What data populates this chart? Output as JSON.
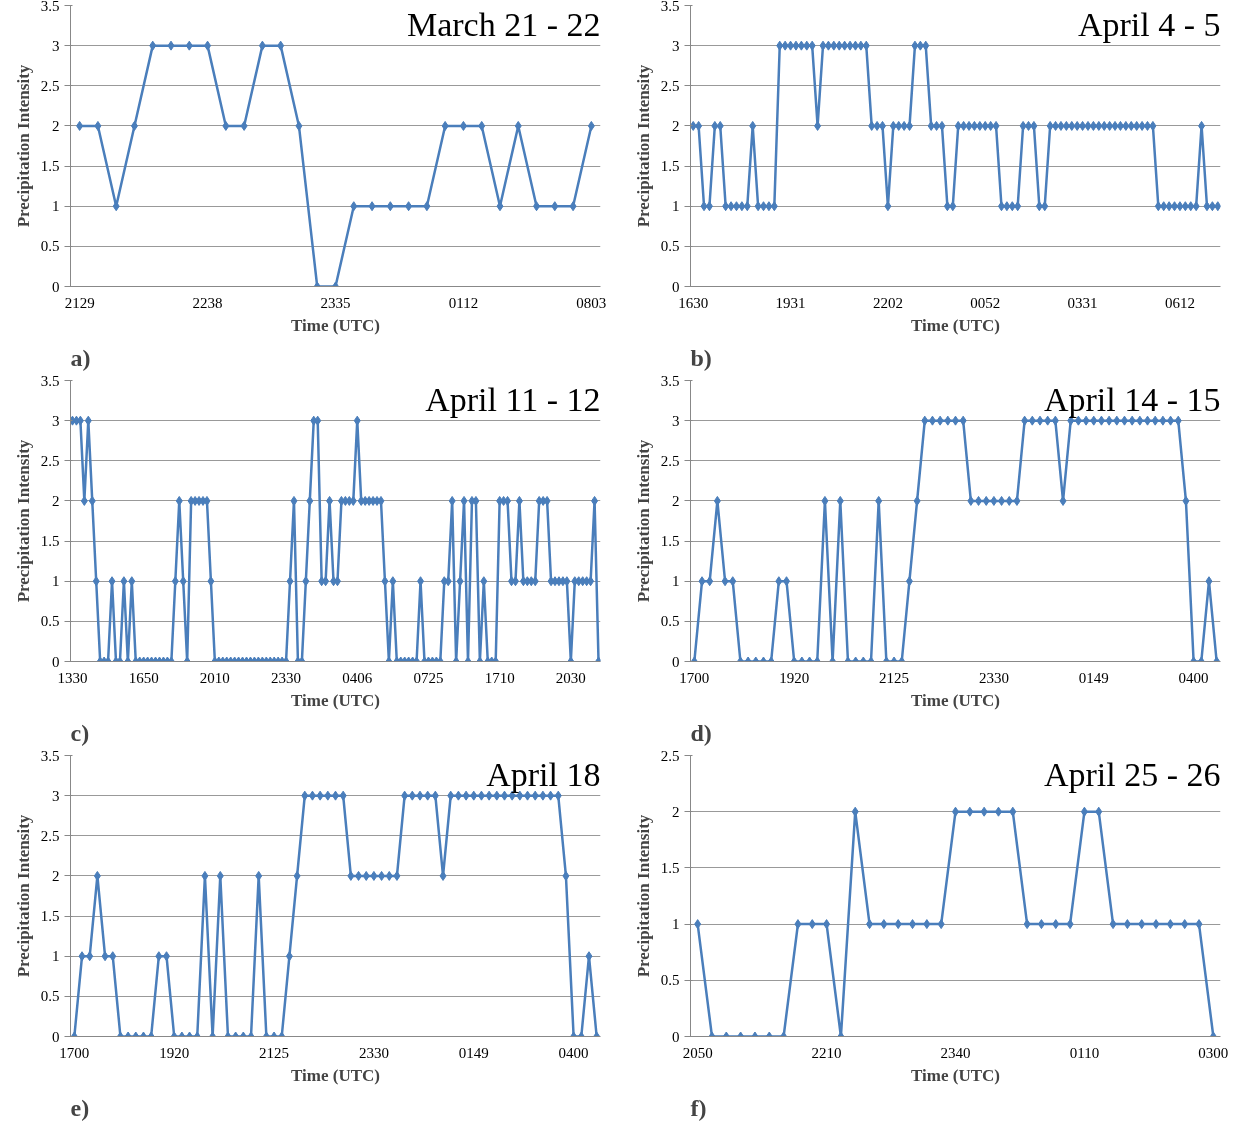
{
  "chart_data": [
    {
      "type": "line",
      "title": "March 21 - 22",
      "xlabel": "Time (UTC)",
      "ylabel": "Precipitation Intensity",
      "annotations": [
        "a)"
      ],
      "color": "#4a7ebb",
      "marker": "diamond",
      "grid": "y",
      "ylim": [
        0,
        3.5
      ],
      "yticks": [
        0,
        0.5,
        1,
        1.5,
        2,
        2.5,
        3,
        3.5
      ],
      "categories": [
        "2129",
        null,
        null,
        null,
        null,
        null,
        null,
        "2238",
        null,
        null,
        null,
        null,
        null,
        null,
        "2335",
        null,
        null,
        null,
        null,
        null,
        null,
        "0112",
        null,
        null,
        null,
        null,
        null,
        null,
        "0803"
      ],
      "values": [
        2,
        2,
        1,
        2,
        3,
        3,
        3,
        3,
        2,
        2,
        3,
        3,
        2,
        0,
        0,
        1,
        1,
        1,
        1,
        1,
        2,
        2,
        2,
        1,
        2,
        1,
        1,
        1,
        2
      ]
    },
    {
      "type": "line",
      "title": "April 4 - 5",
      "xlabel": "Time (UTC)",
      "ylabel": "Precipitation Intensity",
      "annotations": [
        "b)"
      ],
      "color": "#4a7ebb",
      "marker": "diamond",
      "grid": "y",
      "ylim": [
        0,
        3.5
      ],
      "yticks": [
        0,
        0.5,
        1,
        1.5,
        2,
        2.5,
        3,
        3.5
      ],
      "categories": [
        "1630",
        null,
        null,
        null,
        null,
        null,
        null,
        null,
        null,
        null,
        null,
        null,
        null,
        null,
        null,
        null,
        null,
        null,
        "1931",
        null,
        null,
        null,
        null,
        null,
        null,
        null,
        null,
        null,
        null,
        null,
        null,
        null,
        null,
        null,
        null,
        null,
        "2202",
        null,
        null,
        null,
        null,
        null,
        null,
        null,
        null,
        null,
        null,
        null,
        null,
        null,
        null,
        null,
        null,
        null,
        "0052",
        null,
        null,
        null,
        null,
        null,
        null,
        null,
        null,
        null,
        null,
        null,
        null,
        null,
        null,
        null,
        null,
        null,
        "0331",
        null,
        null,
        null,
        null,
        null,
        null,
        null,
        null,
        null,
        null,
        null,
        null,
        null,
        null,
        null,
        null,
        null,
        "0612",
        null,
        null,
        null,
        null,
        null,
        null,
        null
      ],
      "values": [
        2,
        2,
        1,
        1,
        2,
        2,
        1,
        1,
        1,
        1,
        1,
        2,
        1,
        1,
        1,
        1,
        3,
        3,
        3,
        3,
        3,
        3,
        3,
        2,
        3,
        3,
        3,
        3,
        3,
        3,
        3,
        3,
        3,
        2,
        2,
        2,
        1,
        2,
        2,
        2,
        2,
        3,
        3,
        3,
        2,
        2,
        2,
        1,
        1,
        2,
        2,
        2,
        2,
        2,
        2,
        2,
        2,
        1,
        1,
        1,
        1,
        2,
        2,
        2,
        1,
        1,
        2,
        2,
        2,
        2,
        2,
        2,
        2,
        2,
        2,
        2,
        2,
        2,
        2,
        2,
        2,
        2,
        2,
        2,
        2,
        2,
        1,
        1,
        1,
        1,
        1,
        1,
        1,
        1,
        2,
        1,
        1,
        1
      ]
    },
    {
      "type": "line",
      "title": "April 11 - 12",
      "xlabel": "Time (UTC)",
      "ylabel": "Precipitation Intensity",
      "annotations": [
        "c)"
      ],
      "color": "#4a7ebb",
      "marker": "diamond",
      "grid": "y",
      "ylim": [
        0,
        3.5
      ],
      "yticks": [
        0,
        0.5,
        1,
        1.5,
        2,
        2.5,
        3,
        3.5
      ],
      "categories": [
        "1330",
        null,
        null,
        null,
        null,
        null,
        null,
        null,
        null,
        null,
        null,
        null,
        null,
        null,
        null,
        null,
        null,
        null,
        "1650",
        null,
        null,
        null,
        null,
        null,
        null,
        null,
        null,
        null,
        null,
        null,
        null,
        null,
        null,
        null,
        null,
        null,
        "2010",
        null,
        null,
        null,
        null,
        null,
        null,
        null,
        null,
        null,
        null,
        null,
        null,
        null,
        null,
        null,
        null,
        null,
        "2330",
        null,
        null,
        null,
        null,
        null,
        null,
        null,
        null,
        null,
        null,
        null,
        null,
        null,
        null,
        null,
        null,
        null,
        "0406",
        null,
        null,
        null,
        null,
        null,
        null,
        null,
        null,
        null,
        null,
        null,
        null,
        null,
        null,
        null,
        null,
        null,
        "0725",
        null,
        null,
        null,
        null,
        null,
        null,
        null,
        null,
        null,
        null,
        null,
        null,
        null,
        null,
        null,
        null,
        null,
        "1710",
        null,
        null,
        null,
        null,
        null,
        null,
        null,
        null,
        null,
        null,
        null,
        null,
        null,
        null,
        null,
        null,
        null,
        "2030",
        null,
        null,
        null,
        null,
        null,
        null,
        null
      ],
      "values": [
        3,
        3,
        3,
        2,
        3,
        2,
        1,
        0,
        0,
        0,
        1,
        0,
        0,
        1,
        0,
        1,
        0,
        0,
        0,
        0,
        0,
        0,
        0,
        0,
        0,
        0,
        1,
        2,
        1,
        0,
        2,
        2,
        2,
        2,
        2,
        1,
        0,
        0,
        0,
        0,
        0,
        0,
        0,
        0,
        0,
        0,
        0,
        0,
        0,
        0,
        0,
        0,
        0,
        0,
        0,
        1,
        2,
        0,
        0,
        1,
        2,
        3,
        3,
        1,
        1,
        2,
        1,
        1,
        2,
        2,
        2,
        2,
        3,
        2,
        2,
        2,
        2,
        2,
        2,
        1,
        0,
        1,
        0,
        0,
        0,
        0,
        0,
        0,
        1,
        0,
        0,
        0,
        0,
        0,
        1,
        1,
        2,
        0,
        1,
        2,
        0,
        2,
        2,
        0,
        1,
        0,
        0,
        0,
        2,
        2,
        2,
        1,
        1,
        2,
        1,
        1,
        1,
        1,
        2,
        2,
        2,
        1,
        1,
        1,
        1,
        1,
        0,
        1,
        1,
        1,
        1,
        1,
        2,
        0
      ]
    },
    {
      "type": "line",
      "title": "April 14 - 15",
      "xlabel": "Time (UTC)",
      "ylabel": "Precipitation Intensity",
      "annotations": [
        "d)"
      ],
      "color": "#4a7ebb",
      "marker": "diamond",
      "grid": "y",
      "ylim": [
        0,
        3.5
      ],
      "yticks": [
        0,
        0.5,
        1,
        1.5,
        2,
        2.5,
        3,
        3.5
      ],
      "categories": [
        "1700",
        null,
        null,
        null,
        null,
        null,
        null,
        null,
        null,
        null,
        null,
        null,
        null,
        "1920",
        null,
        null,
        null,
        null,
        null,
        null,
        null,
        null,
        null,
        null,
        null,
        null,
        "2125",
        null,
        null,
        null,
        null,
        null,
        null,
        null,
        null,
        null,
        null,
        null,
        null,
        "2330",
        null,
        null,
        null,
        null,
        null,
        null,
        null,
        null,
        null,
        null,
        null,
        null,
        "0149",
        null,
        null,
        null,
        null,
        null,
        null,
        null,
        null,
        null,
        null,
        null,
        null,
        "0400",
        null,
        null,
        null
      ],
      "values": [
        0,
        1,
        1,
        2,
        1,
        1,
        0,
        0,
        0,
        0,
        0,
        1,
        1,
        0,
        0,
        0,
        0,
        2,
        0,
        2,
        0,
        0,
        0,
        0,
        2,
        0,
        0,
        0,
        1,
        2,
        3,
        3,
        3,
        3,
        3,
        3,
        2,
        2,
        2,
        2,
        2,
        2,
        2,
        3,
        3,
        3,
        3,
        3,
        2,
        3,
        3,
        3,
        3,
        3,
        3,
        3,
        3,
        3,
        3,
        3,
        3,
        3,
        3,
        3,
        2,
        0,
        0,
        1,
        0
      ]
    },
    {
      "type": "line",
      "title": "April 18",
      "xlabel": "Time (UTC)",
      "ylabel": "Precipitation Intensity",
      "annotations": [
        "e)"
      ],
      "color": "#4a7ebb",
      "marker": "diamond",
      "grid": "y",
      "ylim": [
        0,
        3.5
      ],
      "yticks": [
        0,
        0.5,
        1,
        1.5,
        2,
        2.5,
        3,
        3.5
      ],
      "categories": [
        "1700",
        null,
        null,
        null,
        null,
        null,
        null,
        null,
        null,
        null,
        null,
        null,
        null,
        "1920",
        null,
        null,
        null,
        null,
        null,
        null,
        null,
        null,
        null,
        null,
        null,
        null,
        "2125",
        null,
        null,
        null,
        null,
        null,
        null,
        null,
        null,
        null,
        null,
        null,
        null,
        "2330",
        null,
        null,
        null,
        null,
        null,
        null,
        null,
        null,
        null,
        null,
        null,
        null,
        "0149",
        null,
        null,
        null,
        null,
        null,
        null,
        null,
        null,
        null,
        null,
        null,
        null,
        "0400",
        null,
        null,
        null
      ],
      "values": [
        0,
        1,
        1,
        2,
        1,
        1,
        0,
        0,
        0,
        0,
        0,
        1,
        1,
        0,
        0,
        0,
        0,
        2,
        0,
        2,
        0,
        0,
        0,
        0,
        2,
        0,
        0,
        0,
        1,
        2,
        3,
        3,
        3,
        3,
        3,
        3,
        2,
        2,
        2,
        2,
        2,
        2,
        2,
        3,
        3,
        3,
        3,
        3,
        2,
        3,
        3,
        3,
        3,
        3,
        3,
        3,
        3,
        3,
        3,
        3,
        3,
        3,
        3,
        3,
        2,
        0,
        0,
        1,
        0
      ]
    },
    {
      "type": "line",
      "title": "April 25 - 26",
      "xlabel": "Time (UTC)",
      "ylabel": "Precipitation Intensity",
      "annotations": [
        "f)"
      ],
      "color": "#4a7ebb",
      "marker": "diamond",
      "grid": "y",
      "ylim": [
        0,
        2.5
      ],
      "yticks": [
        0,
        0.5,
        1,
        1.5,
        2,
        2.5
      ],
      "categories": [
        "2050",
        null,
        null,
        null,
        null,
        null,
        null,
        null,
        null,
        "2210",
        null,
        null,
        null,
        null,
        null,
        null,
        null,
        null,
        "2340",
        null,
        null,
        null,
        null,
        null,
        null,
        null,
        null,
        "0110",
        null,
        null,
        null,
        null,
        null,
        null,
        null,
        null,
        "0300"
      ],
      "values": [
        1,
        0,
        0,
        0,
        0,
        0,
        0,
        1,
        1,
        1,
        0,
        2,
        1,
        1,
        1,
        1,
        1,
        1,
        2,
        2,
        2,
        2,
        2,
        1,
        1,
        1,
        1,
        2,
        2,
        1,
        1,
        1,
        1,
        1,
        1,
        1,
        0
      ]
    }
  ]
}
